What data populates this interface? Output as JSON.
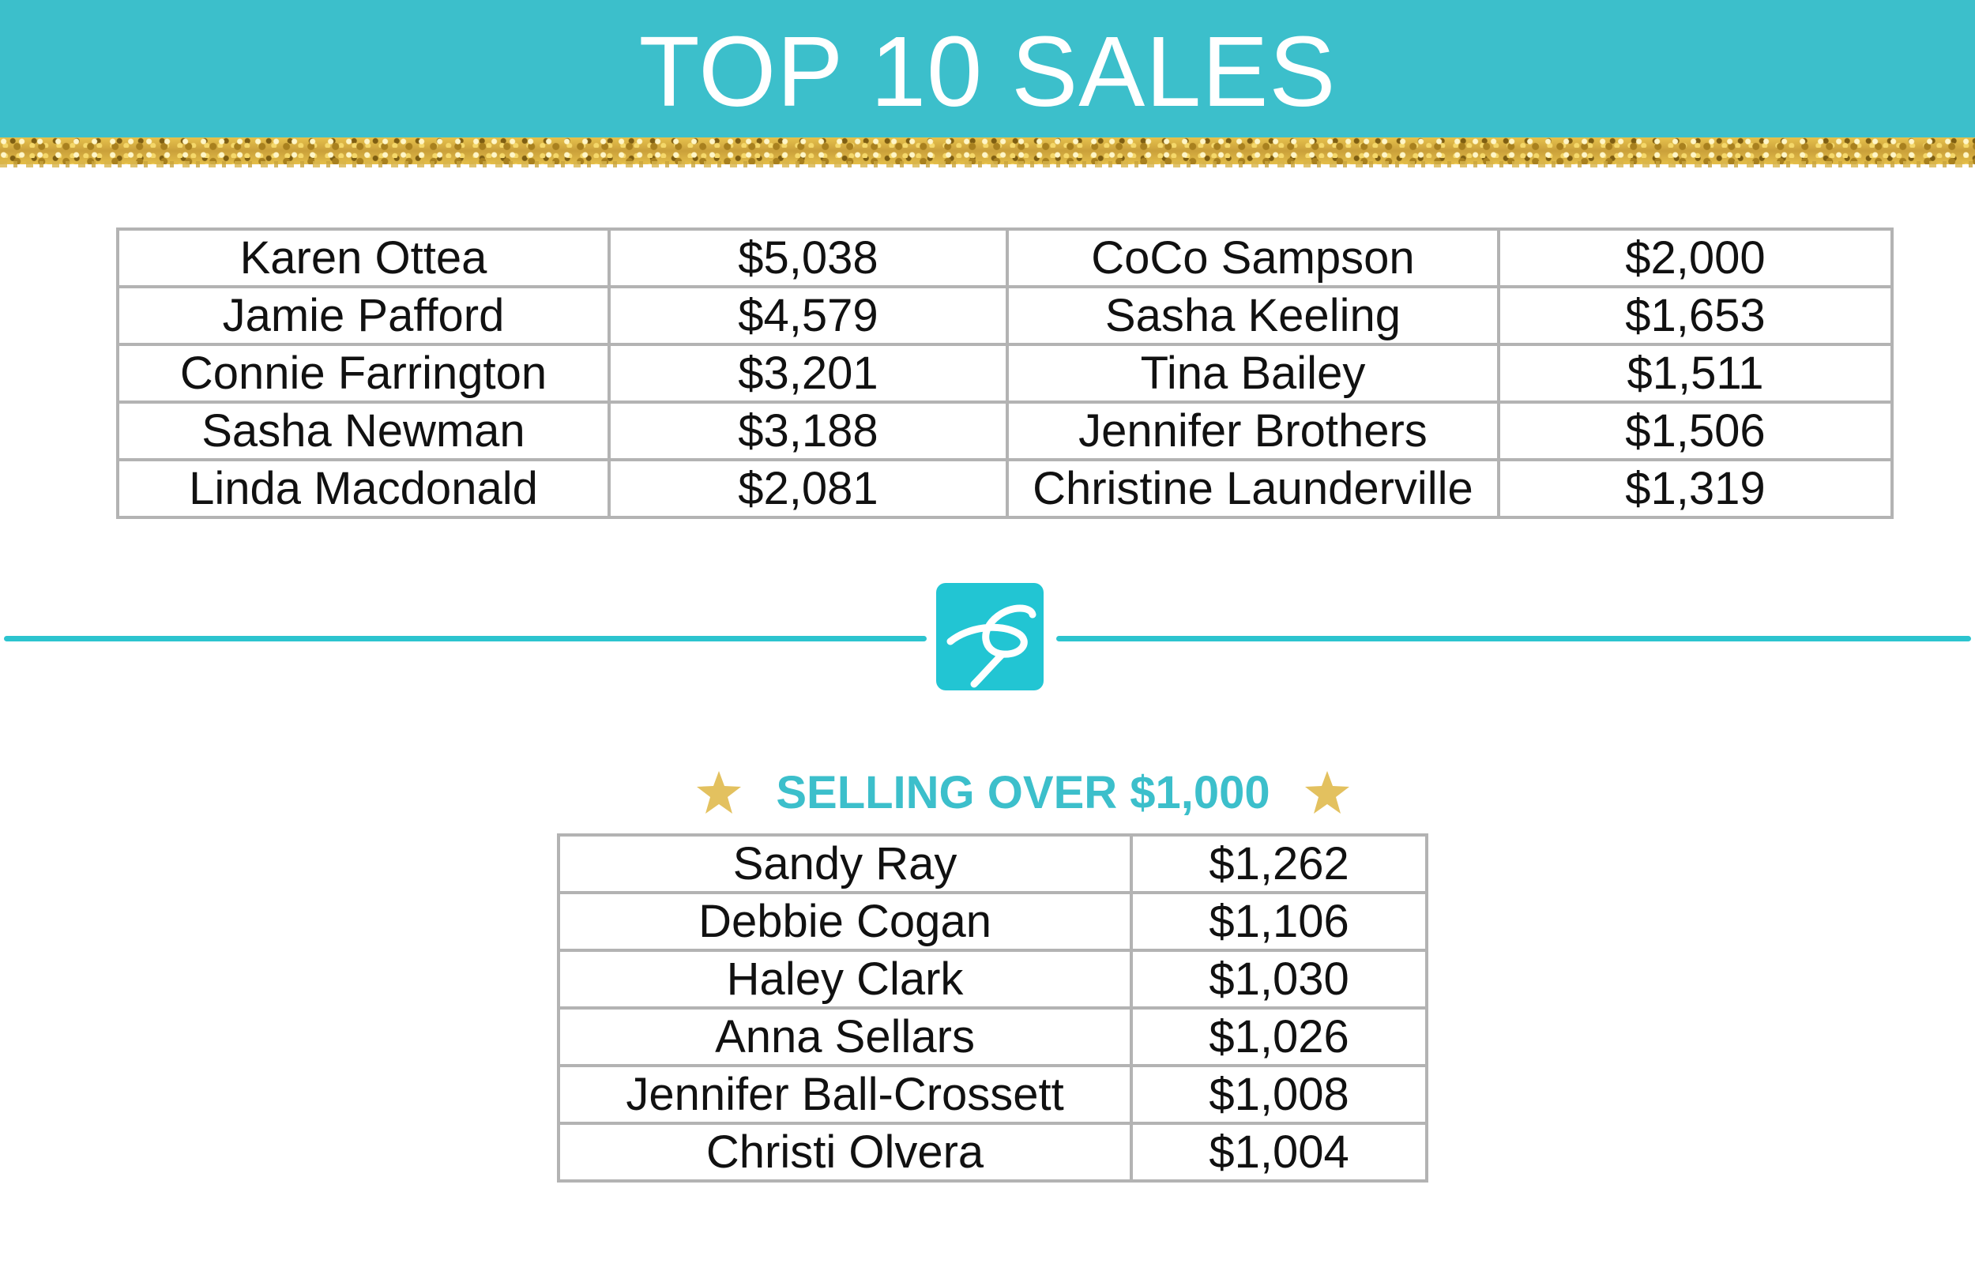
{
  "banner": {
    "title": "TOP 10 SALES",
    "color": "#3cbfcb"
  },
  "top10": {
    "rows": [
      {
        "left_name": "Karen Ottea",
        "left_amount": "$5,038",
        "right_name": "CoCo Sampson",
        "right_amount": "$2,000"
      },
      {
        "left_name": "Jamie Pafford",
        "left_amount": "$4,579",
        "right_name": "Sasha Keeling",
        "right_amount": "$1,653"
      },
      {
        "left_name": "Connie Farrington",
        "left_amount": "$3,201",
        "right_name": "Tina Bailey",
        "right_amount": "$1,511"
      },
      {
        "left_name": "Sasha Newman",
        "left_amount": "$3,188",
        "right_name": "Jennifer Brothers",
        "right_amount": "$1,506"
      },
      {
        "left_name": "Linda Macdonald",
        "left_amount": "$2,081",
        "right_name": "Christine Launderville",
        "right_amount": "$1,319"
      }
    ]
  },
  "divider": {
    "logo_icon": "script-s-logo-icon",
    "color": "#2cc4cf"
  },
  "over1000": {
    "heading": "SELLING OVER $1,000",
    "star_icon": "star-icon",
    "star_color": "#e3c15f",
    "rows": [
      {
        "name": "Sandy Ray",
        "amount": "$1,262"
      },
      {
        "name": "Debbie Cogan",
        "amount": "$1,106"
      },
      {
        "name": "Haley Clark",
        "amount": "$1,030"
      },
      {
        "name": "Anna Sellars",
        "amount": "$1,026"
      },
      {
        "name": "Jennifer Ball-Crossett",
        "amount": "$1,008"
      },
      {
        "name": "Christi Olvera",
        "amount": "$1,004"
      }
    ]
  }
}
